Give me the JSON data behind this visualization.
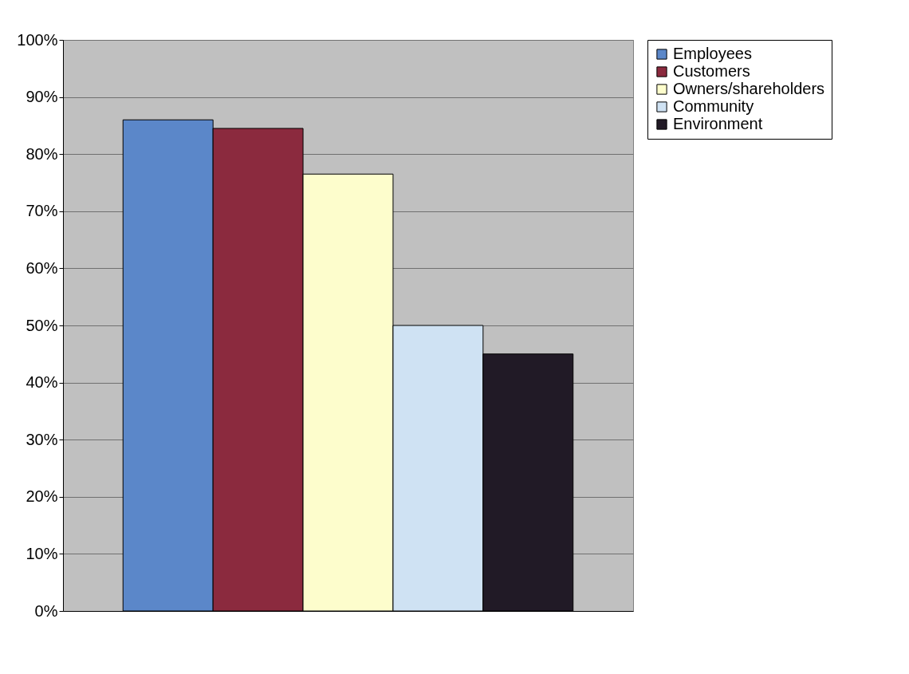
{
  "chart_data": {
    "type": "bar",
    "categories": [
      null
    ],
    "series": [
      {
        "name": "Employees",
        "color": "#5b87c9",
        "values": [
          86
        ]
      },
      {
        "name": "Customers",
        "color": "#8b2a3e",
        "values": [
          84.5
        ]
      },
      {
        "name": "Owners/shareholders",
        "color": "#fdfdcc",
        "values": [
          76.5
        ]
      },
      {
        "name": "Community",
        "color": "#cfe2f3",
        "values": [
          50
        ]
      },
      {
        "name": "Environment",
        "color": "#211a26",
        "values": [
          45
        ]
      }
    ],
    "ylim": [
      0,
      100
    ],
    "yticks": [
      {
        "value": 0,
        "label": "0%"
      },
      {
        "value": 10,
        "label": "10%"
      },
      {
        "value": 20,
        "label": "20%"
      },
      {
        "value": 30,
        "label": "30%"
      },
      {
        "value": 40,
        "label": "40%"
      },
      {
        "value": 50,
        "label": "50%"
      },
      {
        "value": 60,
        "label": "60%"
      },
      {
        "value": 70,
        "label": "70%"
      },
      {
        "value": 80,
        "label": "80%"
      },
      {
        "value": 90,
        "label": "90%"
      },
      {
        "value": 100,
        "label": "100%"
      }
    ],
    "grid": "y",
    "legend": "right"
  }
}
